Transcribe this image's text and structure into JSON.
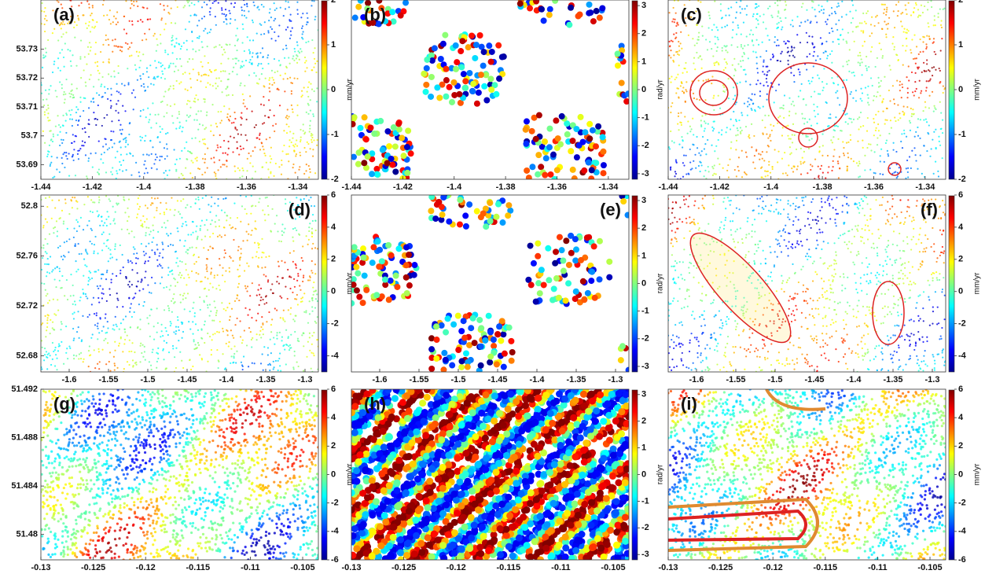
{
  "chart_data": [
    {
      "type": "scatter",
      "label": "(a)",
      "xlim": [
        -1.44,
        -1.332
      ],
      "xticks": [
        -1.44,
        -1.42,
        -1.4,
        -1.38,
        -1.36,
        -1.34
      ],
      "ylim": [
        53.685,
        53.747
      ],
      "yticks": [
        53.69,
        53.7,
        53.71,
        53.72,
        53.73
      ],
      "colorbar": {
        "label": "mm/yr",
        "lim": [
          -2,
          2
        ],
        "ticks": [
          -2,
          -1,
          0,
          1,
          2
        ]
      }
    },
    {
      "type": "phase",
      "label": "(b)",
      "xlim": [
        -1.44,
        -1.332
      ],
      "xticks": [
        -1.44,
        -1.42,
        -1.4,
        -1.38,
        -1.36,
        -1.34
      ],
      "ylim": [
        53.685,
        53.747
      ],
      "colorbar": {
        "label": "rad/yr",
        "lim": [
          -3.2,
          3.2
        ],
        "ticks": [
          -3,
          -2,
          -1,
          0,
          1,
          2,
          3
        ]
      }
    },
    {
      "type": "scatter",
      "label": "(c)",
      "xlim": [
        -1.44,
        -1.332
      ],
      "xticks": [
        -1.44,
        -1.42,
        -1.4,
        -1.38,
        -1.36,
        -1.34
      ],
      "ylim": [
        53.685,
        53.747
      ],
      "colorbar": {
        "label": "mm/yr",
        "lim": [
          -2,
          2
        ],
        "ticks": [
          -2,
          -1,
          0,
          1,
          2
        ]
      }
    },
    {
      "type": "scatter",
      "label": "(d)",
      "xlim": [
        -1.636,
        -1.283
      ],
      "xticks": [
        -1.6,
        -1.55,
        -1.5,
        -1.45,
        -1.4,
        -1.35,
        -1.3
      ],
      "ylim": [
        52.667,
        52.809
      ],
      "yticks": [
        52.68,
        52.72,
        52.76,
        52.8
      ],
      "colorbar": {
        "label": "mm/yr",
        "lim": [
          -5,
          6
        ],
        "ticks": [
          -4,
          -2,
          0,
          2,
          4,
          6
        ]
      }
    },
    {
      "type": "phase",
      "label": "(e)",
      "xlim": [
        -1.636,
        -1.283
      ],
      "xticks": [
        -1.6,
        -1.55,
        -1.5,
        -1.45,
        -1.4,
        -1.35,
        -1.3
      ],
      "ylim": [
        52.667,
        52.809
      ],
      "colorbar": {
        "label": "rad/yr",
        "lim": [
          -3.2,
          3.2
        ],
        "ticks": [
          -3,
          -2,
          -1,
          0,
          1,
          2,
          3
        ]
      }
    },
    {
      "type": "scatter",
      "label": "(f)",
      "xlim": [
        -1.636,
        -1.283
      ],
      "xticks": [
        -1.6,
        -1.55,
        -1.5,
        -1.45,
        -1.4,
        -1.35,
        -1.3
      ],
      "ylim": [
        52.667,
        52.809
      ],
      "colorbar": {
        "label": "mm/yr",
        "lim": [
          -5,
          6
        ],
        "ticks": [
          -4,
          -2,
          0,
          2,
          4,
          6
        ]
      }
    },
    {
      "type": "scatter",
      "label": "(g)",
      "xlim": [
        -0.13,
        -0.1035
      ],
      "xticks": [
        -0.13,
        -0.125,
        -0.12,
        -0.115,
        -0.11,
        -0.105
      ],
      "ylim": [
        51.4779,
        51.492
      ],
      "yticks": [
        51.48,
        51.484,
        51.488,
        51.492
      ],
      "colorbar": {
        "label": "mm/yr",
        "lim": [
          -6,
          6
        ],
        "ticks": [
          -6,
          -4,
          -2,
          0,
          2,
          4,
          6
        ]
      }
    },
    {
      "type": "phase",
      "label": "(h)",
      "xlim": [
        -0.13,
        -0.1035
      ],
      "xticks": [
        -0.13,
        -0.125,
        -0.12,
        -0.115,
        -0.11,
        -0.105
      ],
      "ylim": [
        51.4779,
        51.492
      ],
      "colorbar": {
        "label": "rad/yr",
        "lim": [
          -3.2,
          3.2
        ],
        "ticks": [
          -3,
          -2,
          -1,
          0,
          1,
          2,
          3
        ]
      }
    },
    {
      "type": "scatter",
      "label": "(i)",
      "xlim": [
        -0.13,
        -0.1035
      ],
      "xticks": [
        -0.13,
        -0.125,
        -0.12,
        -0.115,
        -0.11,
        -0.105
      ],
      "ylim": [
        51.4779,
        51.492
      ],
      "colorbar": {
        "label": "mm/yr",
        "lim": [
          -6,
          6
        ],
        "ticks": [
          -6,
          -4,
          -2,
          0,
          2,
          4,
          6
        ]
      }
    }
  ],
  "colormap": [
    "#00008f",
    "#0000ff",
    "#0080ff",
    "#00ffff",
    "#80ff80",
    "#ffff00",
    "#ff8000",
    "#ff0000",
    "#800000"
  ]
}
